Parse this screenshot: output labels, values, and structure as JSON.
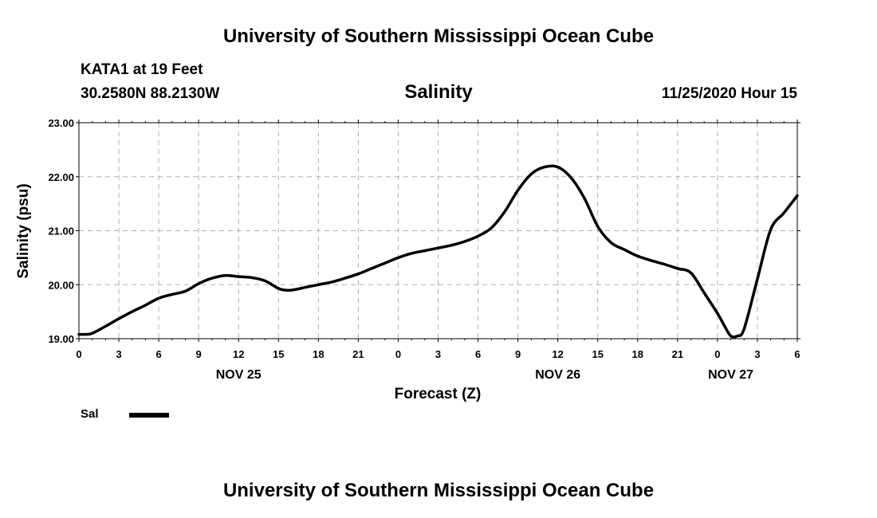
{
  "header": {
    "title": "University of Southern Mississippi Ocean Cube",
    "station": "KATA1 at 19 Feet",
    "location": "30.2580N 88.2130W",
    "datetime": "11/25/2020 Hour 15"
  },
  "footer": {
    "title": "University of Southern Mississippi Ocean Cube"
  },
  "colors": {
    "line": "#000000",
    "grid": "#b0b0b0",
    "axis": "#000000"
  },
  "chart_data": {
    "type": "line",
    "title": "Salinity",
    "xlabel": "Forecast (Z)",
    "ylabel": "Salinity (psu)",
    "x_unit": "hours since NOV 25 00Z",
    "xlim": [
      0,
      54
    ],
    "ylim": [
      19.0,
      23.0
    ],
    "grid": true,
    "y_ticks": [
      "19.00",
      "20.00",
      "21.00",
      "22.00",
      "23.00"
    ],
    "x_ticks": [
      {
        "x": 0,
        "label": "0"
      },
      {
        "x": 3,
        "label": "3"
      },
      {
        "x": 6,
        "label": "6"
      },
      {
        "x": 9,
        "label": "9"
      },
      {
        "x": 12,
        "label": "12"
      },
      {
        "x": 15,
        "label": "15"
      },
      {
        "x": 18,
        "label": "18"
      },
      {
        "x": 21,
        "label": "21"
      },
      {
        "x": 24,
        "label": "0"
      },
      {
        "x": 27,
        "label": "3"
      },
      {
        "x": 30,
        "label": "6"
      },
      {
        "x": 33,
        "label": "9"
      },
      {
        "x": 36,
        "label": "12"
      },
      {
        "x": 39,
        "label": "15"
      },
      {
        "x": 42,
        "label": "18"
      },
      {
        "x": 45,
        "label": "21"
      },
      {
        "x": 48,
        "label": "0"
      },
      {
        "x": 51,
        "label": "3"
      },
      {
        "x": 54,
        "label": "6"
      }
    ],
    "date_labels": [
      {
        "x": 12,
        "label": "NOV 25"
      },
      {
        "x": 36,
        "label": "NOV 26"
      },
      {
        "x": 49,
        "label": "NOV 27"
      }
    ],
    "legend": {
      "placement": "bottom-left",
      "label": "Sal"
    },
    "series": [
      {
        "name": "Sal",
        "x": [
          0,
          0.5,
          1,
          2,
          3,
          4,
          5,
          6,
          7,
          8,
          9,
          10,
          11,
          12,
          13,
          14,
          15,
          15.5,
          16,
          17,
          18,
          19,
          20,
          21,
          22,
          23,
          24,
          25,
          26,
          27,
          28,
          29,
          30,
          31,
          32,
          33,
          34,
          35,
          36,
          37,
          38,
          39,
          40,
          41,
          42,
          43,
          44,
          45,
          46,
          47,
          48,
          48.5,
          49,
          49.5,
          50,
          51,
          52,
          53,
          54
        ],
        "y": [
          19.08,
          19.08,
          19.1,
          19.23,
          19.37,
          19.5,
          19.62,
          19.75,
          19.82,
          19.88,
          20.02,
          20.12,
          20.17,
          20.15,
          20.13,
          20.07,
          19.93,
          19.9,
          19.9,
          19.95,
          20.0,
          20.05,
          20.12,
          20.2,
          20.3,
          20.4,
          20.5,
          20.58,
          20.63,
          20.68,
          20.73,
          20.8,
          20.9,
          21.05,
          21.35,
          21.75,
          22.05,
          22.18,
          22.18,
          21.98,
          21.6,
          21.08,
          20.78,
          20.65,
          20.53,
          20.45,
          20.38,
          20.3,
          20.22,
          19.85,
          19.47,
          19.25,
          19.05,
          19.05,
          19.18,
          20.1,
          21.02,
          21.33,
          21.65
        ]
      }
    ]
  }
}
